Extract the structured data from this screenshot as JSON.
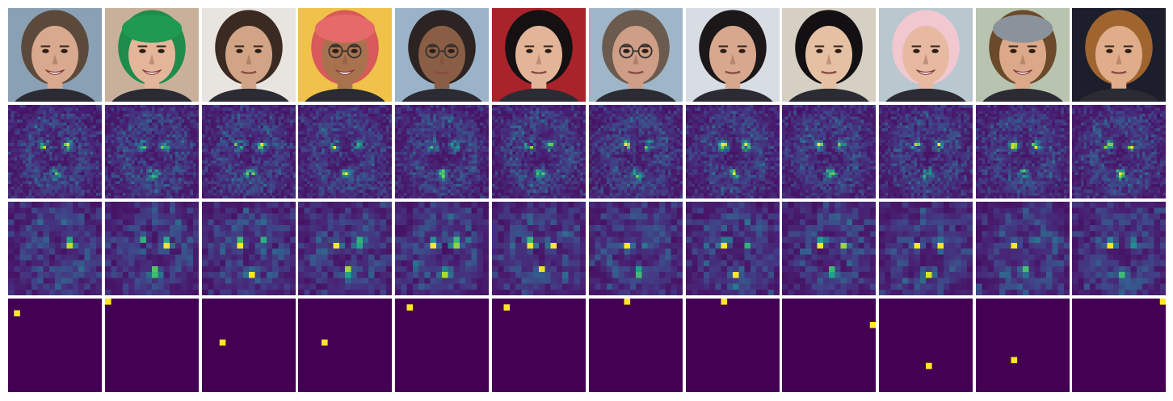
{
  "figure": {
    "rows": [
      {
        "id": "faces",
        "kind": "photo"
      },
      {
        "id": "attention-fine",
        "kind": "heatmap",
        "resolution": 32
      },
      {
        "id": "attention-coarse",
        "kind": "heatmap",
        "resolution": 16
      },
      {
        "id": "attention-argmax",
        "kind": "argmax",
        "resolution": 16
      }
    ],
    "colors": {
      "viridis_low": "#440154",
      "viridis_mid": "#21918c",
      "viridis_high": "#fde725",
      "background": "#ffffff"
    },
    "faces": [
      {
        "hair": "#5b4a3c",
        "skin": "#d9a98f",
        "bg": "#8aa0b4",
        "hat": null,
        "glasses": false,
        "smile": true
      },
      {
        "hair": "#1e8c4a",
        "skin": "#e3b69a",
        "bg": "#c9b09a",
        "hat": "#1e9a52",
        "glasses": false,
        "smile": true
      },
      {
        "hair": "#3a2a22",
        "skin": "#d2a486",
        "bg": "#e8e4df",
        "hat": null,
        "glasses": false,
        "smile": false
      },
      {
        "hair": "#d85a5a",
        "skin": "#a9724f",
        "bg": "#f0c24a",
        "hat": "#e56a6a",
        "glasses": true,
        "smile": true
      },
      {
        "hair": "#2c2422",
        "skin": "#8a5e45",
        "bg": "#9bb3c9",
        "hat": null,
        "glasses": true,
        "smile": false
      },
      {
        "hair": "#151012",
        "skin": "#e2b598",
        "bg": "#a8232a",
        "hat": null,
        "glasses": false,
        "smile": false
      },
      {
        "hair": "#6b5a4e",
        "skin": "#cf9e86",
        "bg": "#9fb6c8",
        "hat": null,
        "glasses": true,
        "smile": false
      },
      {
        "hair": "#1c1718",
        "skin": "#d7a88e",
        "bg": "#d8dde4",
        "hat": null,
        "glasses": false,
        "smile": false
      },
      {
        "hair": "#121012",
        "skin": "#e6c0a3",
        "bg": "#d6cfc4",
        "hat": null,
        "glasses": false,
        "smile": false
      },
      {
        "hair": "#f1c7d0",
        "skin": "#e7b9a1",
        "bg": "#b9c7cf",
        "hat": null,
        "glasses": false,
        "smile": true
      },
      {
        "hair": "#6a4a2a",
        "skin": "#dba98a",
        "bg": "#b8c3b0",
        "hat": "#8a939b",
        "glasses": false,
        "smile": true
      },
      {
        "hair": "#a0652f",
        "skin": "#e0ad8b",
        "bg": "#1d1e2c",
        "hat": null,
        "glasses": false,
        "smile": false
      }
    ],
    "argmax_cells": [
      [
        2,
        1
      ],
      [
        0,
        0
      ],
      [
        7,
        3
      ],
      [
        7,
        4
      ],
      [
        1,
        2
      ],
      [
        1,
        2
      ],
      [
        0,
        6
      ],
      [
        0,
        6
      ],
      [
        4,
        15
      ],
      [
        11,
        8
      ],
      [
        10,
        6
      ],
      [
        0,
        15
      ]
    ]
  }
}
